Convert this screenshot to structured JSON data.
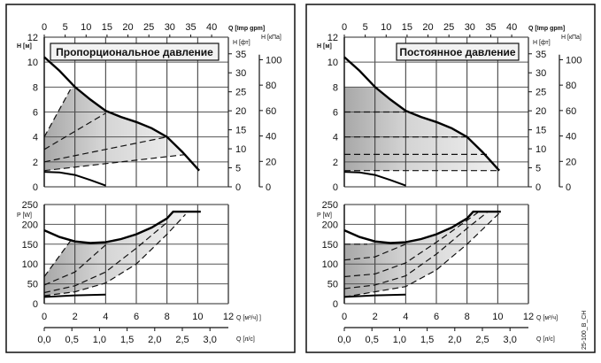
{
  "chart_data": [
    {
      "type": "line",
      "title": "Пропорциональное давление",
      "mode": "proportional",
      "head": {
        "xlabel_top": "Q [Imp gpm]",
        "ylabel": "H [м]",
        "ylabel_ft": "H [фт]",
        "ylabel_kpa": "H [кПа]",
        "xlim": [
          0,
          12
        ],
        "ylim": [
          0,
          12
        ],
        "gpm_ticks": [
          "0",
          "5",
          "10",
          "15",
          "20",
          "25",
          "30",
          "35",
          "40"
        ],
        "y_ticks": [
          "0",
          "2",
          "4",
          "6",
          "8",
          "10",
          "12"
        ],
        "ft_ticks": [
          "0",
          "5",
          "10",
          "15",
          "20",
          "25",
          "30",
          "35"
        ],
        "kpa_ticks": [
          "0",
          "20",
          "40",
          "60",
          "80",
          "100"
        ],
        "max_curve": [
          [
            0,
            10.4
          ],
          [
            1,
            9.3
          ],
          [
            2,
            8
          ],
          [
            3,
            7
          ],
          [
            4,
            6.1
          ],
          [
            5,
            5.6
          ],
          [
            6,
            5.2
          ],
          [
            7,
            4.7
          ],
          [
            8,
            4
          ],
          [
            9,
            2.8
          ],
          [
            10.1,
            1.3
          ]
        ],
        "min_curve": [
          [
            0,
            1.2
          ],
          [
            1,
            1.15
          ],
          [
            2,
            0.95
          ],
          [
            3,
            0.55
          ],
          [
            4,
            0.1
          ]
        ],
        "control_lines": [
          [
            [
              0,
              4
            ],
            [
              1.7,
              7.8
            ]
          ],
          [
            [
              0,
              3
            ],
            [
              4,
              5.9
            ]
          ],
          [
            [
              0,
              2
            ],
            [
              8,
              4
            ]
          ],
          [
            [
              0,
              1.3
            ],
            [
              9.3,
              2.6
            ]
          ]
        ],
        "area": [
          [
            0,
            4
          ],
          [
            1.7,
            7.8
          ],
          [
            2,
            8
          ],
          [
            3,
            7
          ],
          [
            4,
            6.1
          ],
          [
            5,
            5.6
          ],
          [
            6,
            5.2
          ],
          [
            7,
            4.7
          ],
          [
            8,
            4
          ],
          [
            9,
            2.8
          ],
          [
            9.3,
            2.6
          ],
          [
            0,
            1.3
          ]
        ]
      },
      "power": {
        "ylabel": "P [W]",
        "xlabel": "Q [м³/ч] ]",
        "xlabel2": "Q [л/с]",
        "xlim": [
          0,
          12
        ],
        "ylim": [
          0,
          250
        ],
        "y_ticks": [
          "0",
          "50",
          "100",
          "150",
          "200",
          "250"
        ],
        "x_ticks": [
          "0",
          "2",
          "4",
          "6",
          "8",
          "10",
          "12"
        ],
        "ls_ticks": [
          "0,0",
          "0,5",
          "1,0",
          "1,5",
          "2,0",
          "2,5",
          "3,0"
        ],
        "max_curve": [
          [
            0,
            185
          ],
          [
            1,
            168
          ],
          [
            2,
            157
          ],
          [
            3,
            153
          ],
          [
            4,
            155
          ],
          [
            5,
            163
          ],
          [
            6,
            175
          ],
          [
            7,
            192
          ],
          [
            8,
            215
          ],
          [
            8.4,
            232
          ],
          [
            10.2,
            232
          ]
        ],
        "min_curve": [
          [
            0,
            17
          ],
          [
            2,
            21
          ],
          [
            4,
            23
          ]
        ],
        "control_lines": [
          [
            [
              0,
              68
            ],
            [
              1.7,
              158
            ]
          ],
          [
            [
              0,
              47
            ],
            [
              2,
              80
            ],
            [
              4,
              148
            ]
          ],
          [
            [
              0,
              28
            ],
            [
              2,
              45
            ],
            [
              4,
              80
            ],
            [
              6,
              140
            ],
            [
              8,
              205
            ]
          ],
          [
            [
              0,
              20
            ],
            [
              2,
              30
            ],
            [
              4,
              52
            ],
            [
              6,
              100
            ],
            [
              8,
              175
            ],
            [
              9.2,
              225
            ]
          ]
        ],
        "area": [
          [
            0,
            68
          ],
          [
            1.7,
            158
          ],
          [
            2,
            157
          ],
          [
            3,
            153
          ],
          [
            4,
            155
          ],
          [
            5,
            163
          ],
          [
            6,
            175
          ],
          [
            7,
            192
          ],
          [
            8,
            215
          ],
          [
            8.4,
            232
          ],
          [
            9.2,
            232
          ],
          [
            9.2,
            225
          ],
          [
            8,
            175
          ],
          [
            6,
            100
          ],
          [
            4,
            52
          ],
          [
            2,
            30
          ],
          [
            0,
            20
          ]
        ]
      }
    },
    {
      "type": "line",
      "title": "Постоянное давление",
      "mode": "constant",
      "head": {
        "xlabel_top": "Q [Imp gpm]",
        "ylabel": "H [м]",
        "ylabel_ft": "H [фт]",
        "ylabel_kpa": "H [кПа]",
        "xlim": [
          0,
          12
        ],
        "ylim": [
          0,
          12
        ],
        "gpm_ticks": [
          "0",
          "5",
          "10",
          "15",
          "20",
          "25",
          "30",
          "35",
          "40"
        ],
        "y_ticks": [
          "0",
          "2",
          "4",
          "6",
          "8",
          "10",
          "12"
        ],
        "ft_ticks": [
          "0",
          "5",
          "10",
          "15",
          "20",
          "25",
          "30",
          "35"
        ],
        "kpa_ticks": [
          "0",
          "20",
          "40",
          "60",
          "80",
          "100"
        ],
        "max_curve": [
          [
            0,
            10.4
          ],
          [
            1,
            9.3
          ],
          [
            2,
            8
          ],
          [
            3,
            7
          ],
          [
            4,
            6.1
          ],
          [
            5,
            5.6
          ],
          [
            6,
            5.2
          ],
          [
            7,
            4.7
          ],
          [
            8,
            4
          ],
          [
            9,
            2.8
          ],
          [
            10.1,
            1.3
          ]
        ],
        "min_curve": [
          [
            0,
            1.2
          ],
          [
            1,
            1.15
          ],
          [
            2,
            0.95
          ],
          [
            3,
            0.55
          ],
          [
            4,
            0.1
          ]
        ],
        "control_lines": [
          [
            [
              0,
              6
            ],
            [
              4,
              6
            ]
          ],
          [
            [
              0,
              4
            ],
            [
              8,
              4
            ]
          ],
          [
            [
              0,
              2.6
            ],
            [
              9.3,
              2.6
            ]
          ],
          [
            [
              0,
              1.3
            ],
            [
              10.1,
              1.3
            ]
          ]
        ],
        "area": [
          [
            0,
            8
          ],
          [
            1.95,
            8
          ],
          [
            2,
            8
          ],
          [
            3,
            7
          ],
          [
            4,
            6.1
          ],
          [
            5,
            5.6
          ],
          [
            6,
            5.2
          ],
          [
            7,
            4.7
          ],
          [
            8,
            4
          ],
          [
            9,
            2.8
          ],
          [
            10.1,
            1.3
          ],
          [
            0,
            1.3
          ]
        ]
      },
      "power": {
        "ylabel": "P [W]",
        "xlabel": "Q [м³/ч]",
        "xlabel2": "Q [л/с]",
        "xlim": [
          0,
          12
        ],
        "ylim": [
          0,
          250
        ],
        "y_ticks": [
          "0",
          "50",
          "100",
          "150",
          "200",
          "250"
        ],
        "x_ticks": [
          "0",
          "2",
          "4",
          "6",
          "8",
          "10",
          "12"
        ],
        "ls_ticks": [
          "0,0",
          "0,5",
          "1,0",
          "1,5",
          "2,0",
          "2,5",
          "3,0"
        ],
        "max_curve": [
          [
            0,
            185
          ],
          [
            1,
            168
          ],
          [
            2,
            157
          ],
          [
            3,
            153
          ],
          [
            4,
            155
          ],
          [
            5,
            163
          ],
          [
            6,
            175
          ],
          [
            7,
            192
          ],
          [
            8,
            215
          ],
          [
            8.4,
            232
          ],
          [
            10.2,
            232
          ]
        ],
        "min_curve": [
          [
            0,
            17
          ],
          [
            2,
            21
          ],
          [
            4,
            23
          ]
        ],
        "control_lines": [
          [
            [
              0,
              150
            ],
            [
              1.5,
              150
            ]
          ],
          [
            [
              0,
              110
            ],
            [
              2,
              118
            ],
            [
              4,
              150
            ]
          ],
          [
            [
              0,
              68
            ],
            [
              2,
              75
            ],
            [
              4,
              103
            ],
            [
              6,
              155
            ],
            [
              8,
              210
            ],
            [
              8.7,
              230
            ]
          ],
          [
            [
              0,
              38
            ],
            [
              2,
              47
            ],
            [
              4,
              70
            ],
            [
              6,
              125
            ],
            [
              8,
              190
            ],
            [
              9.3,
              230
            ]
          ],
          [
            [
              0,
              17
            ],
            [
              4,
              43
            ],
            [
              6,
              85
            ],
            [
              8,
              150
            ],
            [
              10.2,
              232
            ]
          ]
        ],
        "area": [
          [
            0,
            150
          ],
          [
            1.5,
            150
          ],
          [
            2,
            157
          ],
          [
            3,
            153
          ],
          [
            4,
            155
          ],
          [
            5,
            163
          ],
          [
            6,
            175
          ],
          [
            7,
            192
          ],
          [
            8,
            215
          ],
          [
            8.4,
            232
          ],
          [
            10.2,
            232
          ],
          [
            8,
            150
          ],
          [
            6,
            85
          ],
          [
            4,
            43
          ],
          [
            0,
            17
          ]
        ]
      }
    }
  ],
  "figure_code": "25-100_B_CH"
}
